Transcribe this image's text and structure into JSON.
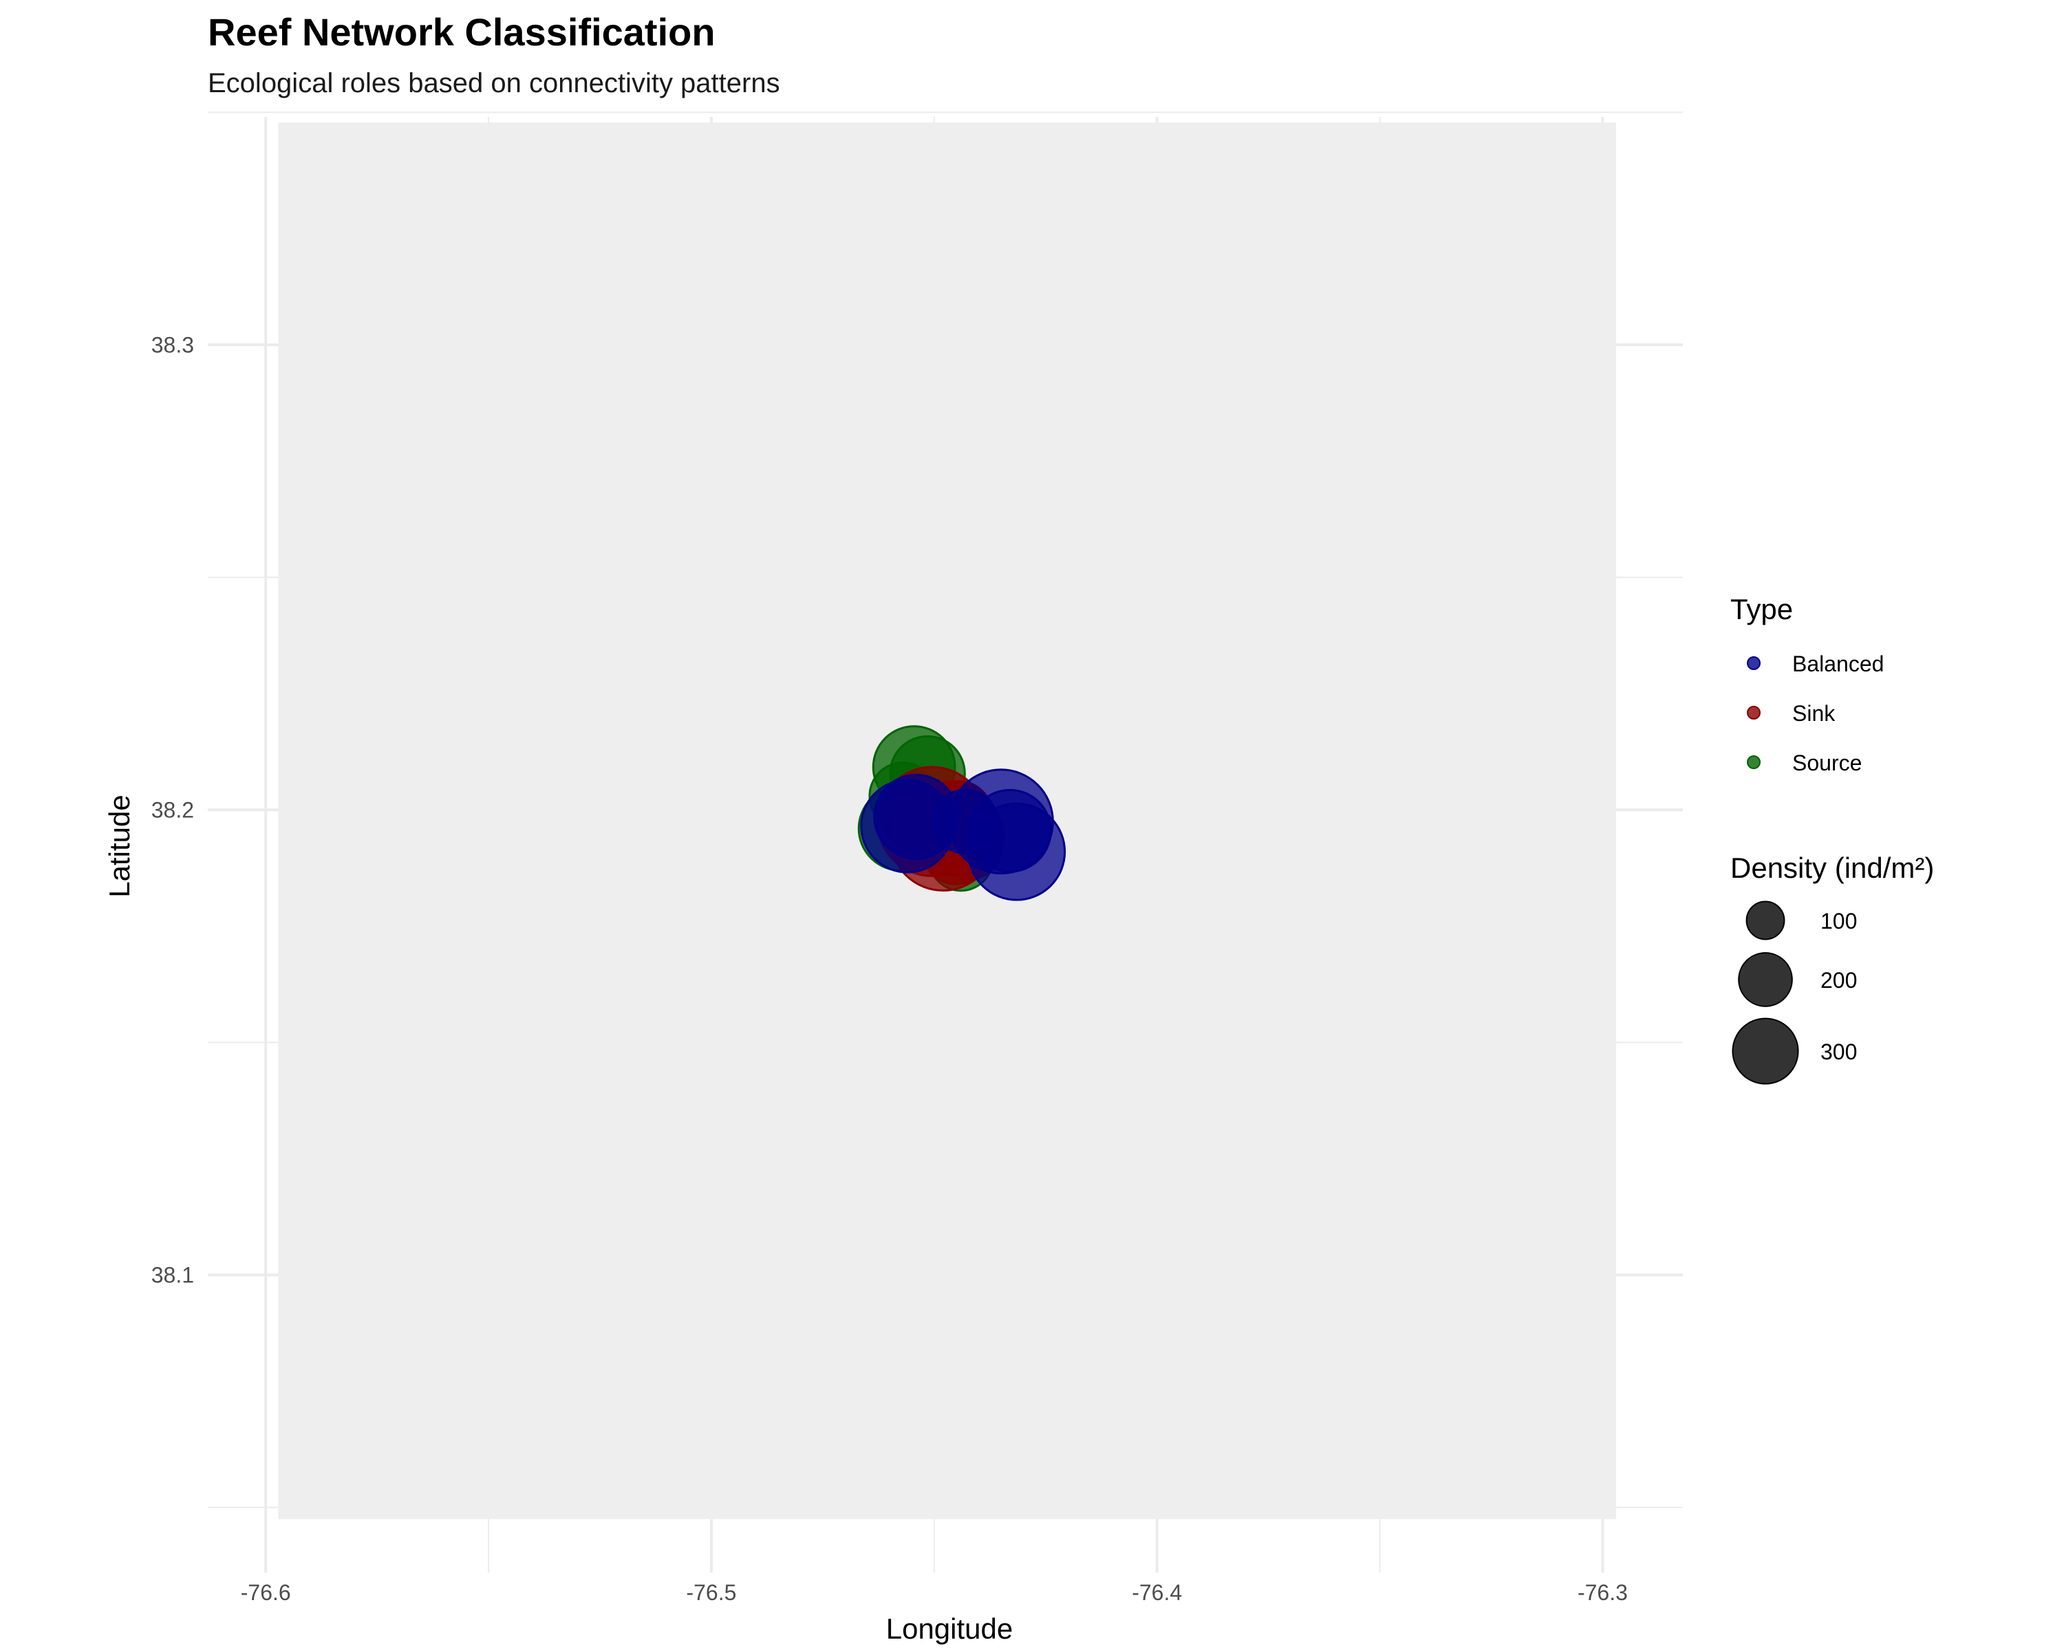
{
  "colors": {
    "Balanced": "#00008B",
    "Sink": "#8B0000",
    "Source": "#006400",
    "panel": "#EEEEEE",
    "grid": "#EBEBEB",
    "size_key": "#333333"
  },
  "chart_data": {
    "type": "scatter",
    "title": "Reef Network Classification",
    "subtitle": "Ecological roles based on connectivity patterns",
    "xlabel": "Longitude",
    "ylabel": "Latitude",
    "xlim": [
      -76.613,
      -76.282
    ],
    "ylim": [
      38.036,
      38.349
    ],
    "xticks": [
      -76.6,
      -76.5,
      -76.4,
      -76.3
    ],
    "xtick_labels": [
      "-76.6",
      "-76.5",
      "-76.4",
      "-76.3"
    ],
    "yticks": [
      38.1,
      38.2,
      38.3
    ],
    "ytick_labels": [
      "38.1",
      "38.2",
      "38.3"
    ],
    "grid": true,
    "legend_position": "right",
    "legend": {
      "color_title": "Type",
      "types": [
        "Balanced",
        "Sink",
        "Source"
      ],
      "size_title": "Density (ind/m²)",
      "sizes": [
        100,
        200,
        300
      ],
      "size_labels": [
        "100",
        "200",
        "300"
      ]
    },
    "series": [
      {
        "name": "Source",
        "points": [
          {
            "x": -76.4545,
            "y": 38.2092,
            "size": 180
          },
          {
            "x": -76.4515,
            "y": 38.2078,
            "size": 150
          },
          {
            "x": -76.457,
            "y": 38.203,
            "size": 120
          },
          {
            "x": -76.4575,
            "y": 38.196,
            "size": 190
          },
          {
            "x": -76.454,
            "y": 38.1985,
            "size": 130
          },
          {
            "x": -76.444,
            "y": 38.1895,
            "size": 110
          }
        ]
      },
      {
        "name": "Sink",
        "points": [
          {
            "x": -76.4505,
            "y": 38.1975,
            "size": 320
          },
          {
            "x": -76.448,
            "y": 38.194,
            "size": 300
          },
          {
            "x": -76.446,
            "y": 38.196,
            "size": 240
          },
          {
            "x": -76.443,
            "y": 38.1945,
            "size": 160
          },
          {
            "x": -76.445,
            "y": 38.1915,
            "size": 130
          },
          {
            "x": -76.442,
            "y": 38.192,
            "size": 110
          },
          {
            "x": -76.4445,
            "y": 38.199,
            "size": 120
          }
        ]
      },
      {
        "name": "Balanced",
        "points": [
          {
            "x": -76.435,
            "y": 38.1975,
            "size": 290
          },
          {
            "x": -76.4315,
            "y": 38.191,
            "size": 250
          },
          {
            "x": -76.433,
            "y": 38.1955,
            "size": 180
          },
          {
            "x": -76.456,
            "y": 38.1965,
            "size": 230
          },
          {
            "x": -76.454,
            "y": 38.1985,
            "size": 190
          },
          {
            "x": -76.443,
            "y": 38.1975,
            "size": 110
          }
        ]
      }
    ]
  }
}
